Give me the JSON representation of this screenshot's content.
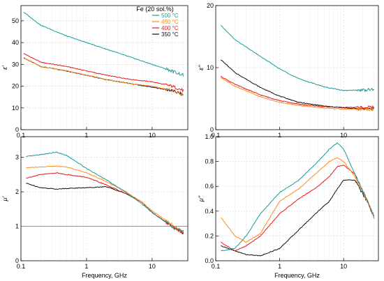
{
  "colors": {
    "500": "#1b9a98",
    "450": "#ff8c1a",
    "400": "#e31a1c",
    "350": "#111111",
    "grid": "#d8d8d8",
    "frame": "#000000"
  },
  "legend": {
    "title": "Fe (20 sol.%)",
    "entries": [
      "500 °C",
      "450 °C",
      "400 °C",
      "350 °C"
    ],
    "placement": "top-right of first panel"
  },
  "chart_data": [
    {
      "type": "line",
      "panel": "top-left",
      "ylabel": "ε'",
      "xlabel": "",
      "xscale": "log",
      "xlim": [
        0.1,
        35
      ],
      "ylim": [
        0,
        57
      ],
      "xticks": [
        "0.1",
        "1",
        "10"
      ],
      "yticks": [
        0,
        10,
        20,
        30,
        40,
        50
      ],
      "x": [
        0.11,
        0.2,
        0.5,
        1,
        2,
        5,
        10,
        20,
        30
      ],
      "series": [
        {
          "name": "500 °C",
          "color_key": "500",
          "values": [
            54,
            48,
            43,
            40,
            37,
            33,
            30,
            27,
            25
          ]
        },
        {
          "name": "450 °C",
          "color_key": "450",
          "values": [
            33,
            29,
            27,
            25,
            23,
            21,
            20,
            18,
            16
          ]
        },
        {
          "name": "400 °C",
          "color_key": "400",
          "values": [
            35,
            31,
            29,
            27,
            25,
            23,
            22,
            20,
            18
          ]
        },
        {
          "name": "350 °C",
          "color_key": "350",
          "values": [
            33,
            29,
            27,
            25,
            23,
            21,
            19.5,
            18,
            16
          ]
        }
      ]
    },
    {
      "type": "line",
      "panel": "top-right",
      "ylabel": "ε''",
      "xlabel": "",
      "xscale": "log",
      "xlim": [
        0.1,
        35
      ],
      "ylim": [
        0,
        20
      ],
      "xticks": [
        "0.1",
        "1",
        "10"
      ],
      "yticks": [
        0,
        10,
        20
      ],
      "x": [
        0.12,
        0.2,
        0.5,
        1,
        2,
        5,
        10,
        20,
        30
      ],
      "series": [
        {
          "name": "500 °C",
          "color_key": "500",
          "values": [
            16.8,
            14.5,
            11.8,
            9.8,
            8.2,
            6.9,
            6.3,
            6.4,
            6.5
          ]
        },
        {
          "name": "450 °C",
          "color_key": "450",
          "values": [
            8.4,
            7.0,
            5.3,
            4.4,
            3.9,
            3.5,
            3.3,
            3.3,
            3.3
          ]
        },
        {
          "name": "400 °C",
          "color_key": "400",
          "values": [
            8.6,
            7.3,
            5.6,
            4.7,
            4.1,
            3.7,
            3.6,
            3.6,
            3.6
          ]
        },
        {
          "name": "350 °C",
          "color_key": "350",
          "values": [
            11.3,
            9.2,
            6.8,
            5.4,
            4.4,
            3.8,
            3.5,
            3.4,
            3.4
          ]
        }
      ]
    },
    {
      "type": "line",
      "panel": "bottom-left",
      "ylabel": "μ'",
      "xlabel": "Frequency, GHz",
      "xscale": "log",
      "xlim": [
        0.1,
        35
      ],
      "ylim": [
        0,
        3.6
      ],
      "xticks": [
        "0.1",
        "1",
        "10"
      ],
      "yticks": [
        0,
        1,
        2,
        3
      ],
      "x": [
        0.12,
        0.2,
        0.35,
        0.5,
        1,
        2,
        4,
        7,
        10,
        20,
        30
      ],
      "series": [
        {
          "name": "500 °C",
          "color_key": "500",
          "values": [
            3.02,
            3.08,
            3.15,
            3.05,
            2.68,
            2.35,
            1.98,
            1.65,
            1.4,
            1.0,
            0.85
          ]
        },
        {
          "name": "450 °C",
          "color_key": "450",
          "values": [
            2.7,
            2.72,
            2.75,
            2.72,
            2.55,
            2.3,
            2.0,
            1.7,
            1.45,
            1.05,
            0.85
          ]
        },
        {
          "name": "400 °C",
          "color_key": "400",
          "values": [
            2.4,
            2.5,
            2.55,
            2.5,
            2.42,
            2.2,
            1.95,
            1.7,
            1.4,
            1.0,
            0.8
          ]
        },
        {
          "name": "350 °C",
          "color_key": "350",
          "values": [
            2.25,
            2.12,
            2.08,
            2.1,
            2.12,
            2.15,
            1.95,
            1.7,
            1.4,
            1.0,
            0.8
          ]
        }
      ]
    },
    {
      "type": "line",
      "panel": "bottom-right",
      "ylabel": "μ''",
      "xlabel": "Frequency, GHz",
      "xscale": "log",
      "xlim": [
        0.1,
        35
      ],
      "ylim": [
        0,
        1.0
      ],
      "xticks": [
        "0.1",
        "1",
        "10"
      ],
      "yticks": [
        "0.0",
        "0.2",
        "0.4",
        "0.6",
        "0.8",
        "1.0"
      ],
      "x": [
        0.12,
        0.2,
        0.3,
        0.5,
        1,
        2,
        4,
        6,
        8,
        10,
        15,
        25,
        30
      ],
      "series": [
        {
          "name": "500 °C",
          "color_key": "500",
          "values": [
            0.08,
            0.1,
            0.2,
            0.38,
            0.55,
            0.65,
            0.8,
            0.9,
            0.95,
            0.9,
            0.7,
            0.45,
            0.35
          ]
        },
        {
          "name": "450 °C",
          "color_key": "450",
          "values": [
            0.35,
            0.2,
            0.15,
            0.22,
            0.48,
            0.58,
            0.72,
            0.8,
            0.83,
            0.8,
            0.68,
            0.45,
            0.35
          ]
        },
        {
          "name": "400 °C",
          "color_key": "400",
          "values": [
            0.15,
            0.08,
            0.12,
            0.2,
            0.38,
            0.5,
            0.6,
            0.68,
            0.76,
            0.77,
            0.7,
            0.45,
            0.35
          ]
        },
        {
          "name": "350 °C",
          "color_key": "350",
          "values": [
            0.12,
            0.08,
            0.05,
            0.04,
            0.1,
            0.25,
            0.4,
            0.48,
            0.58,
            0.65,
            0.65,
            0.45,
            0.35
          ]
        }
      ]
    }
  ]
}
